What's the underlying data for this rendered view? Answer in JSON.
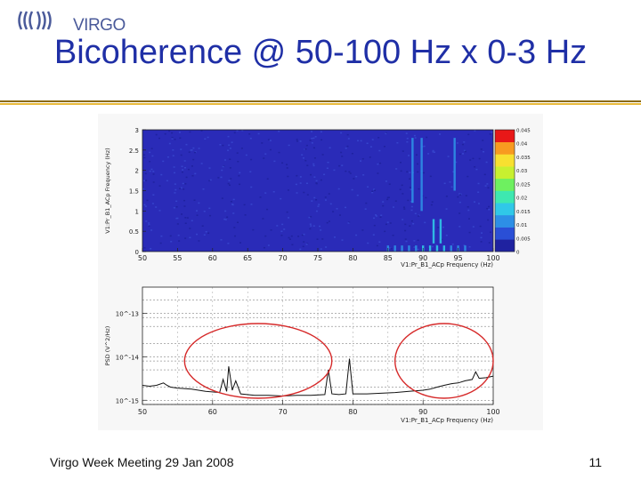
{
  "header": {
    "logo_text": "VIRGO",
    "title": "Bicoherence @ 50-100 Hz x 0-3 Hz"
  },
  "footer": {
    "meeting": "Virgo Week Meeting 29 Jan 2008",
    "page_number": "11"
  },
  "colors": {
    "title": "#1f2fa6",
    "heatmap_background": "#2a2bb8",
    "annotation_circle": "#d62a2a",
    "rule_dark": "#8a6a10",
    "rule_light": "#e8b93a"
  },
  "chart_data": [
    {
      "type": "heatmap",
      "xlabel": "V1:Pr_B1_ACp Frequency (Hz)",
      "ylabel": "V1:Pr_B1_ACp Frequency (Hz)",
      "xlim": [
        50,
        100
      ],
      "ylim": [
        0,
        3
      ],
      "x_ticks": [
        "50",
        "55",
        "60",
        "65",
        "70",
        "75",
        "80",
        "85",
        "90",
        "95",
        "100"
      ],
      "y_ticks": [
        "0",
        "0.5",
        "1",
        "1.5",
        "2",
        "2.5",
        "3"
      ],
      "colorbar": {
        "range": [
          0,
          0.045
        ],
        "ticks": [
          "0",
          "0.005",
          "0.01",
          "0.015",
          "0.02",
          "0.025",
          "0.03",
          "0.035",
          "0.04",
          "0.045"
        ]
      },
      "features": [
        {
          "x": 85,
          "y_range": [
            0,
            0.15
          ],
          "level": 0.012
        },
        {
          "x": 86,
          "y_range": [
            0,
            0.15
          ],
          "level": 0.012
        },
        {
          "x": 87,
          "y_range": [
            0,
            0.15
          ],
          "level": 0.012
        },
        {
          "x": 88,
          "y_range": [
            0,
            0.15
          ],
          "level": 0.013
        },
        {
          "x": 89,
          "y_range": [
            0,
            0.15
          ],
          "level": 0.013
        },
        {
          "x": 90,
          "y_range": [
            0,
            0.15
          ],
          "level": 0.015
        },
        {
          "x": 91,
          "y_range": [
            0,
            0.15
          ],
          "level": 0.014
        },
        {
          "x": 92,
          "y_range": [
            0,
            0.15
          ],
          "level": 0.014
        },
        {
          "x": 93,
          "y_range": [
            0,
            0.15
          ],
          "level": 0.014
        },
        {
          "x": 94,
          "y_range": [
            0,
            0.15
          ],
          "level": 0.013
        },
        {
          "x": 95,
          "y_range": [
            0,
            0.15
          ],
          "level": 0.013
        },
        {
          "x": 96,
          "y_range": [
            0,
            0.15
          ],
          "level": 0.012
        },
        {
          "x": 91.5,
          "y_range": [
            0.2,
            0.8
          ],
          "level": 0.016
        },
        {
          "x": 92.5,
          "y_range": [
            0.2,
            0.8
          ],
          "level": 0.016
        },
        {
          "x": 88.5,
          "y_range": [
            1.2,
            2.8
          ],
          "level": 0.011
        },
        {
          "x": 89.8,
          "y_range": [
            1.0,
            2.8
          ],
          "level": 0.011
        },
        {
          "x": 94.5,
          "y_range": [
            1.5,
            2.8
          ],
          "level": 0.01
        }
      ]
    },
    {
      "type": "line",
      "xlabel": "V1:Pr_B1_ACp Frequency (Hz)",
      "ylabel": "PSD (V^2/Hz)",
      "xlim": [
        50,
        100
      ],
      "yscale": "log",
      "x_ticks": [
        "50",
        "60",
        "70",
        "80",
        "90",
        "100"
      ],
      "y_ticks": [
        "10^-13",
        "10^-14",
        "10^-15"
      ],
      "x": [
        50,
        51,
        52,
        53,
        53.5,
        54,
        55,
        57,
        59,
        61,
        61.5,
        62,
        62.3,
        62.8,
        63.3,
        64,
        66,
        68,
        70,
        72,
        74,
        76,
        76.5,
        77,
        78,
        79,
        79.5,
        80,
        82,
        84,
        86,
        88,
        90,
        91,
        92,
        93,
        94,
        95,
        96,
        97,
        97.5,
        98,
        99,
        100
      ],
      "y": [
        2.2e-15,
        2.1e-15,
        2.2e-15,
        2.5e-15,
        2.2e-15,
        2e-15,
        1.9e-15,
        1.8e-15,
        1.6e-15,
        1.5e-15,
        3e-15,
        1.6e-15,
        6e-15,
        1.7e-15,
        2.8e-15,
        1.4e-15,
        1.3e-15,
        1.3e-15,
        1.25e-15,
        1.3e-15,
        1.3e-15,
        1.35e-15,
        5e-15,
        1.4e-15,
        1.35e-15,
        1.4e-15,
        9e-15,
        1.4e-15,
        1.4e-15,
        1.45e-15,
        1.5e-15,
        1.6e-15,
        1.7e-15,
        1.8e-15,
        2e-15,
        2.2e-15,
        2.4e-15,
        2.5e-15,
        2.8e-15,
        3e-15,
        4.5e-15,
        3.2e-15,
        3.3e-15,
        3.6e-15
      ],
      "annotations": [
        {
          "shape": "ellipse",
          "x_range": [
            56,
            77
          ],
          "color": "#d62a2a"
        },
        {
          "shape": "ellipse",
          "x_range": [
            86,
            100
          ],
          "color": "#d62a2a"
        }
      ]
    }
  ]
}
